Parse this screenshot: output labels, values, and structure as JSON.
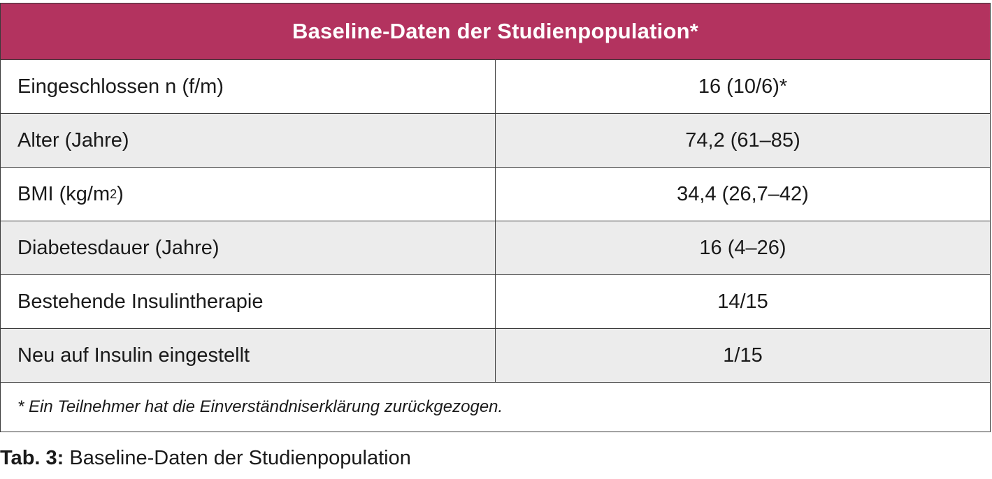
{
  "table": {
    "title": "Baseline-Daten der Studienpopulation*",
    "rows": [
      {
        "label": "Eingeschlossen n (f/m)",
        "value": "16 (10/6)*"
      },
      {
        "label": "Alter (Jahre)",
        "value": "74,2 (61–85)"
      },
      {
        "label_main": "BMI (kg/m",
        "label_sup": "2",
        "label_end": ")",
        "value": "34,4 (26,7–42)"
      },
      {
        "label": "Diabetesdauer (Jahre)",
        "value": "16 (4–26)"
      },
      {
        "label": "Bestehende Insulintherapie",
        "value": "14/15"
      },
      {
        "label": "Neu auf Insulin eingestellt",
        "value": "1/15"
      }
    ],
    "footnote": "* Ein Teilnehmer hat die Einverständniserklärung zurückgezogen."
  },
  "caption": {
    "label": "Tab. 3:",
    "text": " Baseline-Daten der Studienpopulation"
  },
  "colors": {
    "header_bg": "#b3335f",
    "shaded_row": "#ececec",
    "border": "#3a3a3a"
  }
}
